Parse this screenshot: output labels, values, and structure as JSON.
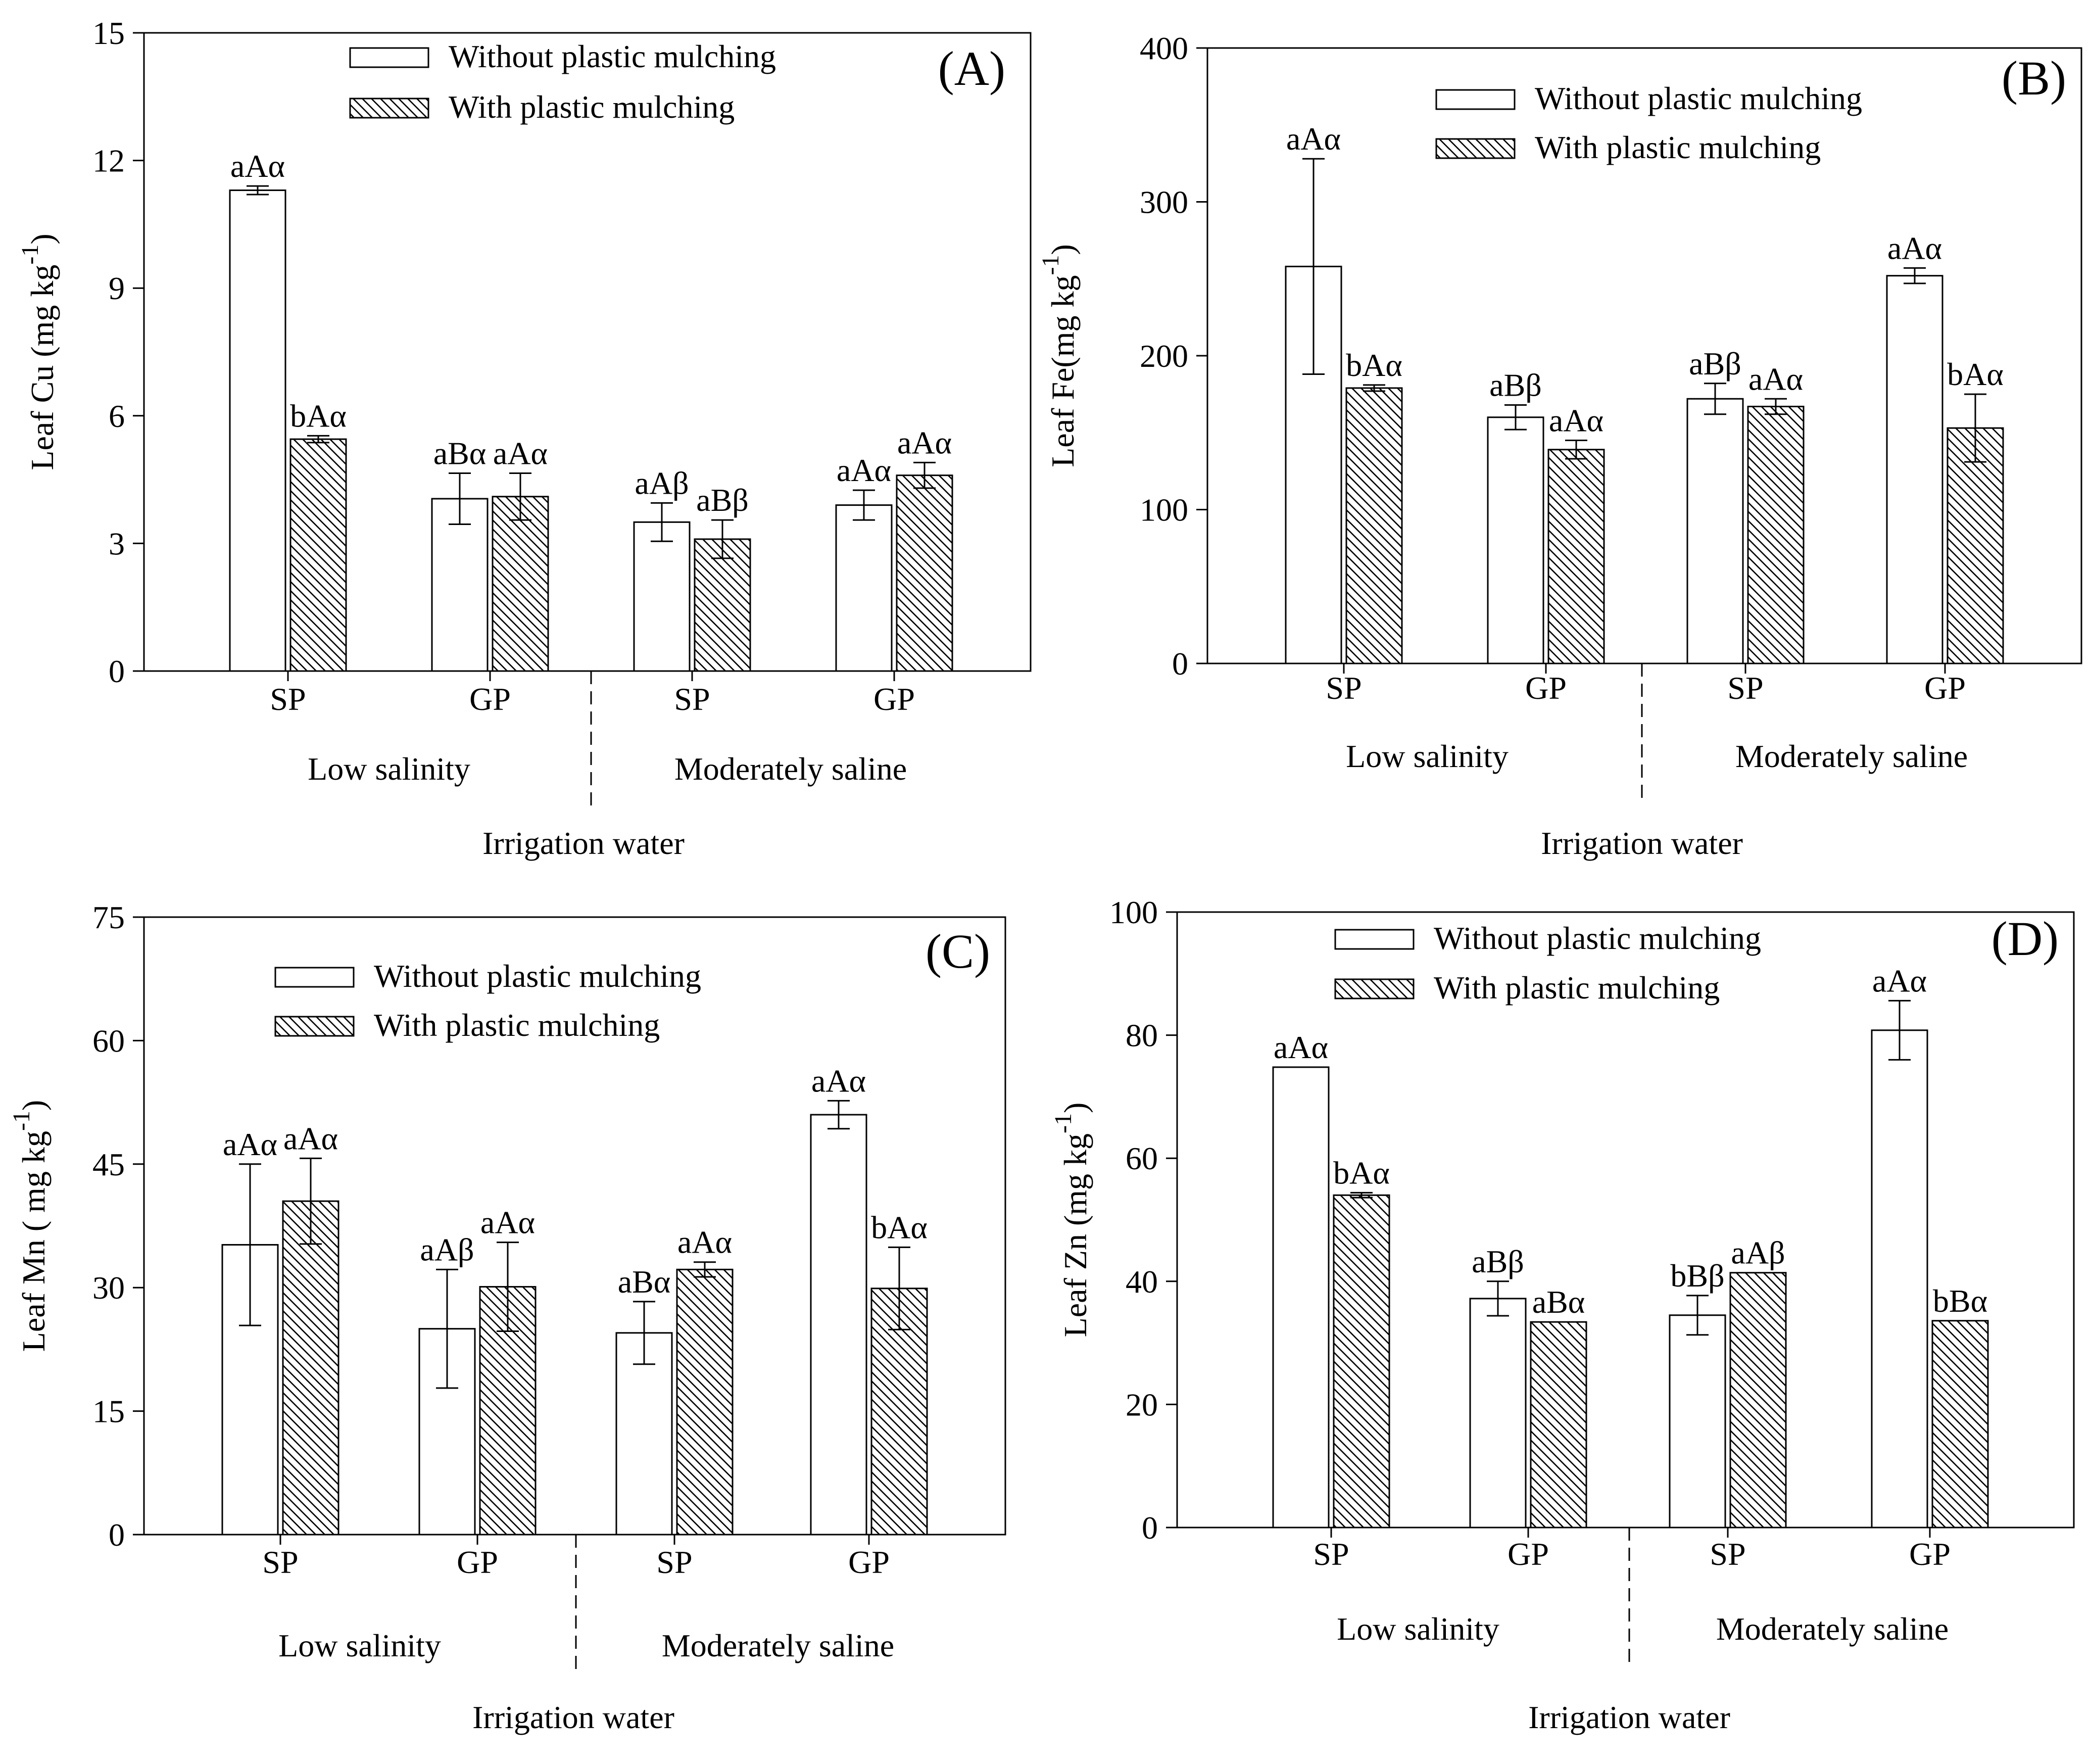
{
  "legend": {
    "without_label": "Without plastic mulching",
    "with_label": "With plastic mulching"
  },
  "colors": {
    "ink": "#000000",
    "background": "#ffffff"
  },
  "chart_data": [
    {
      "panel": "(A)",
      "type": "bar",
      "ylabel": "Leaf Cu (mg kg",
      "ylabel_sup": "-1",
      "ylabel_end": ")",
      "yticks": [
        "0",
        "3",
        "6",
        "9",
        "12",
        "15"
      ],
      "ylim": [
        0,
        15
      ],
      "categories": [
        "SP",
        "GP",
        "SP",
        "GP"
      ],
      "groups": [
        "Low salinity",
        "Moderately saline"
      ],
      "xlabel": "Irrigation water",
      "series": [
        {
          "name": "Without plastic mulching",
          "values": [
            11.3,
            4.05,
            3.5,
            3.9
          ],
          "errors": [
            0.1,
            0.6,
            0.45,
            0.35
          ],
          "labels": [
            "aAα",
            "aBα",
            "aAβ",
            "aAα"
          ]
        },
        {
          "name": "With plastic mulching",
          "values": [
            5.45,
            4.1,
            3.1,
            4.6
          ],
          "errors": [
            0.08,
            0.55,
            0.45,
            0.3
          ],
          "labels": [
            "bAα",
            "aAα",
            "aBβ",
            "aAα"
          ]
        }
      ]
    },
    {
      "panel": "(B)",
      "type": "bar",
      "ylabel": "Leaf Fe(mg kg",
      "ylabel_sup": "-1",
      "ylabel_end": ")",
      "yticks": [
        "0",
        "100",
        "200",
        "300",
        "400"
      ],
      "ylim": [
        0,
        400
      ],
      "categories": [
        "SP",
        "GP",
        "SP",
        "GP"
      ],
      "groups": [
        "Low salinity",
        "Moderately saline"
      ],
      "xlabel": "Irrigation water",
      "series": [
        {
          "name": "Without plastic mulching",
          "values": [
            258,
            160,
            172,
            252
          ],
          "errors": [
            70,
            8,
            10,
            5
          ],
          "labels": [
            "aAα",
            "aBβ",
            "aBβ",
            "aAα"
          ]
        },
        {
          "name": "With plastic mulching",
          "values": [
            179,
            139,
            167,
            153
          ],
          "errors": [
            2,
            6,
            5,
            22
          ],
          "labels": [
            "bAα",
            "aAα",
            "aAα",
            "bAα"
          ]
        }
      ]
    },
    {
      "panel": "(C)",
      "type": "bar",
      "ylabel": "Leaf Mn ( mg kg",
      "ylabel_sup": "-1",
      "ylabel_end": ")",
      "yticks": [
        "0",
        "15",
        "30",
        "45",
        "60",
        "75"
      ],
      "ylim": [
        0,
        75
      ],
      "categories": [
        "SP",
        "GP",
        "SP",
        "GP"
      ],
      "groups": [
        "Low salinity",
        "Moderately saline"
      ],
      "xlabel": "Irrigation water",
      "series": [
        {
          "name": "Without plastic mulching",
          "values": [
            35.2,
            25.0,
            24.5,
            51.0
          ],
          "errors": [
            9.8,
            7.2,
            3.8,
            1.7
          ],
          "labels": [
            "aAα",
            "aAβ",
            "aBα",
            "aAα"
          ]
        },
        {
          "name": "With plastic mulching",
          "values": [
            40.5,
            30.1,
            32.2,
            29.9
          ],
          "errors": [
            5.2,
            5.4,
            0.9,
            5.0
          ],
          "labels": [
            "aAα",
            "aAα",
            "aAα",
            "bAα"
          ]
        }
      ]
    },
    {
      "panel": "(D)",
      "type": "bar",
      "ylabel": "Leaf Zn (mg kg",
      "ylabel_sup": "-1",
      "ylabel_end": ")",
      "yticks": [
        "0",
        "20",
        "40",
        "60",
        "80",
        "100"
      ],
      "ylim": [
        0,
        100
      ],
      "categories": [
        "SP",
        "GP",
        "SP",
        "GP"
      ],
      "groups": [
        "Low salinity",
        "Moderately saline"
      ],
      "xlabel": "Irrigation water",
      "series": [
        {
          "name": "Without plastic mulching",
          "values": [
            74.8,
            37.2,
            34.5,
            80.8
          ],
          "errors": [
            0.0,
            2.8,
            3.2,
            4.8
          ],
          "labels": [
            "aAα",
            "aBβ",
            "bBβ",
            "aAα"
          ]
        },
        {
          "name": "With plastic mulching",
          "values": [
            54.0,
            33.4,
            41.4,
            33.6
          ],
          "errors": [
            0.4,
            0.0,
            0.0,
            0.0
          ],
          "labels": [
            "bAα",
            "aBα",
            "aAβ",
            "bBα"
          ]
        }
      ]
    }
  ]
}
